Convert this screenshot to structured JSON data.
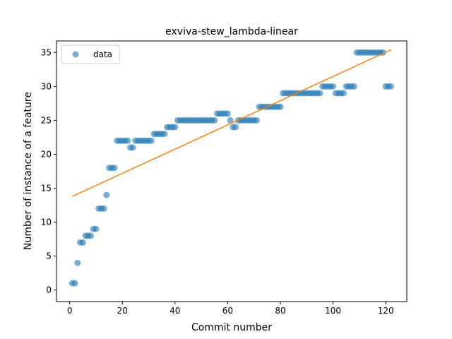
{
  "chart_data": {
    "type": "scatter",
    "title": "exviva-stew_lambda-linear",
    "xlabel": "Commit number",
    "ylabel": "Number of instance of a feature",
    "xlim": [
      -5,
      128
    ],
    "ylim": [
      -1.7,
      36.7
    ],
    "xticks": [
      0,
      20,
      40,
      60,
      80,
      100,
      120
    ],
    "yticks": [
      0,
      5,
      10,
      15,
      20,
      25,
      30,
      35
    ],
    "grid": false,
    "legend": {
      "placement": "top-left",
      "entries": [
        "data"
      ]
    },
    "colors": {
      "data": "#1f77b4",
      "fit": "#ff7f0e"
    },
    "series": [
      {
        "name": "data",
        "kind": "scatter",
        "x": [
          1,
          2,
          3,
          4,
          5,
          6,
          7,
          8,
          9,
          10,
          11,
          12,
          13,
          14,
          15,
          16,
          17,
          18,
          19,
          20,
          21,
          22,
          23,
          24,
          25,
          26,
          27,
          28,
          29,
          30,
          31,
          32,
          33,
          34,
          35,
          36,
          37,
          38,
          39,
          40,
          41,
          42,
          43,
          44,
          45,
          46,
          47,
          48,
          49,
          50,
          51,
          52,
          53,
          54,
          55,
          56,
          57,
          58,
          59,
          60,
          61,
          62,
          63,
          64,
          65,
          66,
          67,
          68,
          69,
          70,
          71,
          72,
          73,
          74,
          75,
          76,
          77,
          78,
          79,
          80,
          81,
          82,
          83,
          84,
          85,
          86,
          87,
          88,
          89,
          90,
          91,
          92,
          93,
          94,
          95,
          96,
          97,
          98,
          99,
          100,
          101,
          102,
          103,
          104,
          105,
          106,
          107,
          108,
          109,
          110,
          111,
          112,
          113,
          114,
          115,
          116,
          117,
          118,
          119,
          120,
          121,
          122
        ],
        "y": [
          1,
          1,
          4,
          7,
          7,
          8,
          8,
          8,
          9,
          9,
          12,
          12,
          12,
          14,
          18,
          18,
          18,
          22,
          22,
          22,
          22,
          22,
          21,
          21,
          22,
          22,
          22,
          22,
          22,
          22,
          22,
          23,
          23,
          23,
          23,
          23,
          24,
          24,
          24,
          24,
          25,
          25,
          25,
          25,
          25,
          25,
          25,
          25,
          25,
          25,
          25,
          25,
          25,
          25,
          25,
          26,
          26,
          26,
          26,
          26,
          25,
          24,
          24,
          25,
          25,
          25,
          25,
          25,
          25,
          25,
          25,
          27,
          27,
          27,
          27,
          27,
          27,
          27,
          27,
          27,
          29,
          29,
          29,
          29,
          29,
          29,
          29,
          29,
          29,
          29,
          29,
          29,
          29,
          29,
          29,
          30,
          30,
          30,
          30,
          30,
          29,
          29,
          29,
          29,
          30,
          30,
          30,
          30,
          35,
          35,
          35,
          35,
          35,
          35,
          35,
          35,
          35,
          35,
          35,
          30,
          30,
          30
        ]
      },
      {
        "kind": "line",
        "x": [
          1,
          122
        ],
        "y": [
          13.8,
          35.4
        ]
      }
    ]
  }
}
